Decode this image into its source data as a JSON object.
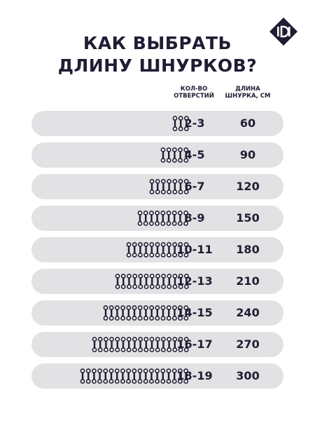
{
  "title": {
    "line1": "КАК ВЫБРАТЬ",
    "line2": "ДЛИНУ ШНУРКОВ?"
  },
  "logo_icon": "brand-logo-icon",
  "columns": {
    "holes_line1": "КОЛ-ВО",
    "holes_line2": "ОТВЕРСТИЙ",
    "length_line1": "ДЛИНА",
    "length_line2": "ШНУРКА, СМ"
  },
  "rows": [
    {
      "holes": "2-3",
      "length": "60",
      "pairs": 3
    },
    {
      "holes": "4-5",
      "length": "90",
      "pairs": 5
    },
    {
      "holes": "6-7",
      "length": "120",
      "pairs": 7
    },
    {
      "holes": "8-9",
      "length": "150",
      "pairs": 9
    },
    {
      "holes": "10-11",
      "length": "180",
      "pairs": 11
    },
    {
      "holes": "12-13",
      "length": "210",
      "pairs": 13
    },
    {
      "holes": "14-15",
      "length": "240",
      "pairs": 15
    },
    {
      "holes": "16-17",
      "length": "270",
      "pairs": 17
    },
    {
      "holes": "18-19",
      "length": "300",
      "pairs": 19
    }
  ],
  "colors": {
    "text": "#1f1d33",
    "row_bg": "#e2e2e4",
    "page_bg": "#ffffff"
  }
}
